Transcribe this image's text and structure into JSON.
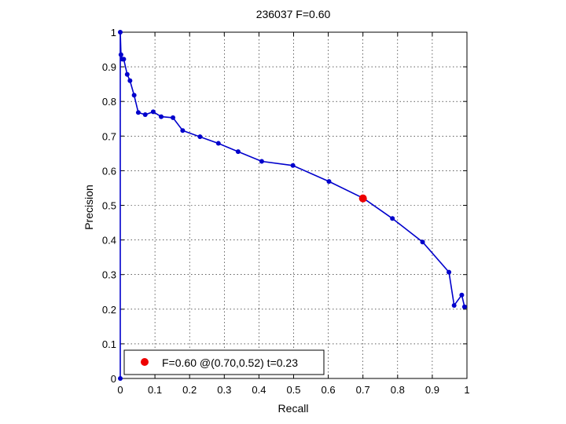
{
  "chart_data": {
    "type": "line",
    "title": "236037 F=0.60",
    "xlabel": "Recall",
    "ylabel": "Precision",
    "xlim": [
      0,
      1
    ],
    "ylim": [
      0,
      1
    ],
    "grid": true,
    "x_ticks": [
      "0",
      "0.1",
      "0.2",
      "0.3",
      "0.4",
      "0.5",
      "0.6",
      "0.7",
      "0.8",
      "0.9",
      "1"
    ],
    "y_ticks": [
      "0",
      "0.1",
      "0.2",
      "0.3",
      "0.4",
      "0.5",
      "0.6",
      "0.7",
      "0.8",
      "0.9",
      "1"
    ],
    "legend_position": "bottom-left",
    "series": [
      {
        "color": "#0000cc",
        "x": [
          0.0,
          0.0,
          0.002,
          0.006,
          0.01,
          0.02,
          0.028,
          0.04,
          0.052,
          0.072,
          0.095,
          0.118,
          0.152,
          0.18,
          0.23,
          0.283,
          0.34,
          0.408,
          0.498,
          0.602,
          0.702,
          0.785,
          0.872,
          0.948,
          0.963,
          0.985,
          0.993
        ],
        "y": [
          0.0,
          1.0,
          0.935,
          0.922,
          0.922,
          0.878,
          0.86,
          0.818,
          0.768,
          0.762,
          0.77,
          0.756,
          0.753,
          0.716,
          0.698,
          0.679,
          0.655,
          0.627,
          0.615,
          0.569,
          0.52,
          0.462,
          0.394,
          0.307,
          0.211,
          0.241,
          0.207
        ]
      }
    ],
    "highlight": {
      "x": 0.7,
      "y": 0.52,
      "color": "#ee0000"
    },
    "legend": {
      "label": "F=0.60 @(0.70,0.52) t=0.23",
      "marker_color": "#ee0000"
    }
  }
}
